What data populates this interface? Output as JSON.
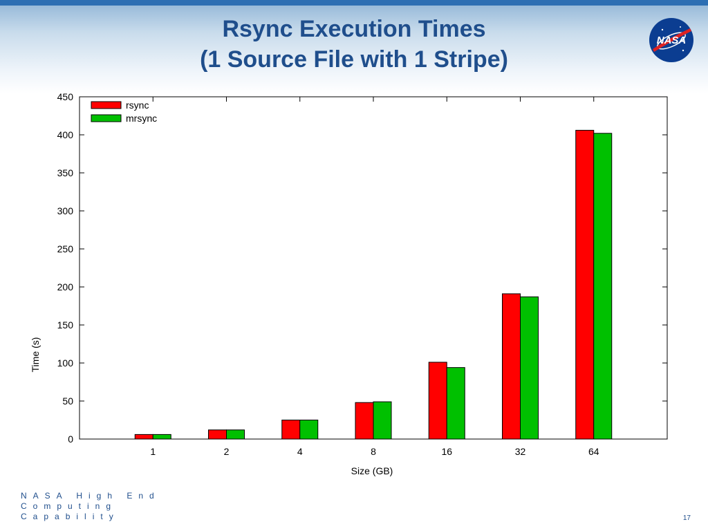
{
  "slide": {
    "title_line1": "Rsync Execution Times",
    "title_line2": "(1 Source File with 1 Stripe)",
    "logo_text": "NASA",
    "footer_org": "NASA High End Computing Capability",
    "page_number": "17"
  },
  "chart_data": {
    "type": "bar",
    "title": "Rsync Execution Times (1 Source File with 1 Stripe)",
    "xlabel": "Size (GB)",
    "ylabel": "Time (s)",
    "categories": [
      "1",
      "2",
      "4",
      "8",
      "16",
      "32",
      "64"
    ],
    "ylim": [
      0,
      450
    ],
    "yticks": [
      0,
      50,
      100,
      150,
      200,
      250,
      300,
      350,
      400,
      450
    ],
    "grid": false,
    "legend_position": "top-left",
    "series": [
      {
        "name": "rsync",
        "color": "#ff0000",
        "values": [
          6,
          12,
          25,
          48,
          101,
          191,
          406
        ]
      },
      {
        "name": "mrsync",
        "color": "#00c000",
        "values": [
          6,
          12,
          25,
          49,
          94,
          187,
          402
        ]
      }
    ]
  }
}
